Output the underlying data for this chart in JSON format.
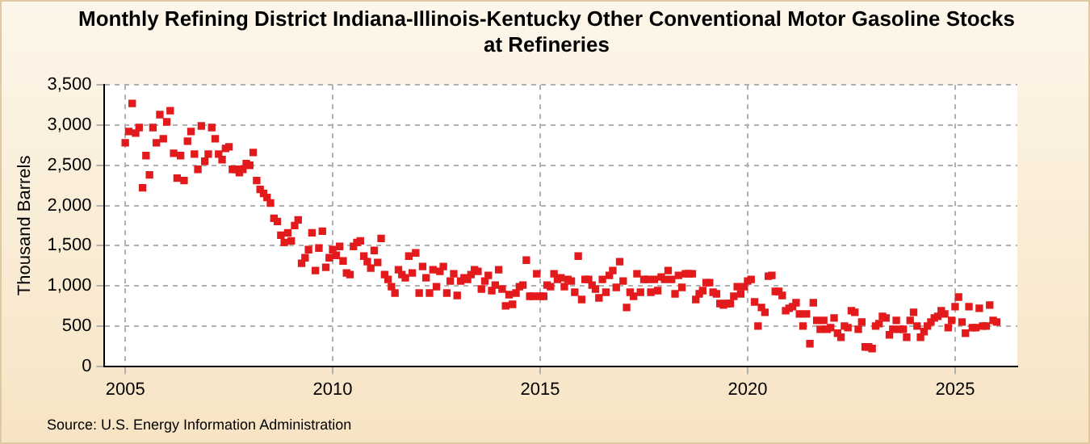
{
  "chart_data": {
    "type": "scatter",
    "title": "Monthly Refining District Indiana-Illinois-Kentucky Other Conventional Motor Gasoline Stocks at Refineries",
    "ylabel": "Thousand Barrels",
    "annotations": [
      "Source: U.S. Energy Information Administration"
    ],
    "x": [
      "2005-01",
      "2005-02",
      "2005-03",
      "2005-04",
      "2005-05",
      "2005-06",
      "2005-07",
      "2005-08",
      "2005-09",
      "2005-10",
      "2005-11",
      "2005-12",
      "2006-01",
      "2006-02",
      "2006-03",
      "2006-04",
      "2006-05",
      "2006-06",
      "2006-07",
      "2006-08",
      "2006-09",
      "2006-10",
      "2006-11",
      "2006-12",
      "2007-01",
      "2007-02",
      "2007-03",
      "2007-04",
      "2007-05",
      "2007-06",
      "2007-07",
      "2007-08",
      "2007-09",
      "2007-10",
      "2007-11",
      "2007-12",
      "2008-01",
      "2008-02",
      "2008-03",
      "2008-04",
      "2008-05",
      "2008-06",
      "2008-07",
      "2008-08",
      "2008-09",
      "2008-10",
      "2008-11",
      "2008-12",
      "2009-01",
      "2009-02",
      "2009-03",
      "2009-04",
      "2009-05",
      "2009-06",
      "2009-07",
      "2009-08",
      "2009-09",
      "2009-10",
      "2009-11",
      "2009-12",
      "2010-01",
      "2010-02",
      "2010-03",
      "2010-04",
      "2010-05",
      "2010-06",
      "2010-07",
      "2010-08",
      "2010-09",
      "2010-10",
      "2010-11",
      "2010-12",
      "2011-01",
      "2011-02",
      "2011-03",
      "2011-04",
      "2011-05",
      "2011-06",
      "2011-07",
      "2011-08",
      "2011-09",
      "2011-10",
      "2011-11",
      "2011-12",
      "2012-01",
      "2012-02",
      "2012-03",
      "2012-04",
      "2012-05",
      "2012-06",
      "2012-07",
      "2012-08",
      "2012-09",
      "2012-10",
      "2012-11",
      "2012-12",
      "2013-01",
      "2013-02",
      "2013-03",
      "2013-04",
      "2013-05",
      "2013-06",
      "2013-07",
      "2013-08",
      "2013-09",
      "2013-10",
      "2013-11",
      "2013-12",
      "2014-01",
      "2014-02",
      "2014-03",
      "2014-04",
      "2014-05",
      "2014-06",
      "2014-07",
      "2014-08",
      "2014-09",
      "2014-10",
      "2014-11",
      "2014-12",
      "2015-01",
      "2015-02",
      "2015-03",
      "2015-04",
      "2015-05",
      "2015-06",
      "2015-07",
      "2015-08",
      "2015-09",
      "2015-10",
      "2015-11",
      "2015-12",
      "2016-01",
      "2016-02",
      "2016-03",
      "2016-04",
      "2016-05",
      "2016-06",
      "2016-07",
      "2016-08",
      "2016-09",
      "2016-10",
      "2016-11",
      "2016-12",
      "2017-01",
      "2017-02",
      "2017-03",
      "2017-04",
      "2017-05",
      "2017-06",
      "2017-07",
      "2017-08",
      "2017-09",
      "2017-10",
      "2017-11",
      "2017-12",
      "2018-01",
      "2018-02",
      "2018-03",
      "2018-04",
      "2018-05",
      "2018-06",
      "2018-07",
      "2018-08",
      "2018-09",
      "2018-10",
      "2018-11",
      "2018-12",
      "2019-01",
      "2019-02",
      "2019-03",
      "2019-04",
      "2019-05",
      "2019-06",
      "2019-07",
      "2019-08",
      "2019-09",
      "2019-10",
      "2019-11",
      "2019-12",
      "2020-01",
      "2020-02",
      "2020-03",
      "2020-04",
      "2020-05",
      "2020-06",
      "2020-07",
      "2020-08",
      "2020-09",
      "2020-10",
      "2020-11",
      "2020-12",
      "2021-01",
      "2021-02",
      "2021-03",
      "2021-04",
      "2021-05",
      "2021-06",
      "2021-07",
      "2021-08",
      "2021-09",
      "2021-10",
      "2021-11",
      "2021-12",
      "2022-01",
      "2022-02",
      "2022-03",
      "2022-04",
      "2022-05",
      "2022-06",
      "2022-07",
      "2022-08",
      "2022-09",
      "2022-10",
      "2022-11",
      "2022-12",
      "2023-01",
      "2023-02",
      "2023-03",
      "2023-04",
      "2023-05",
      "2023-06",
      "2023-07",
      "2023-08",
      "2023-09",
      "2023-10",
      "2023-11",
      "2023-12",
      "2024-01",
      "2024-02",
      "2024-03",
      "2024-04",
      "2024-05",
      "2024-06",
      "2024-07",
      "2024-08",
      "2024-09",
      "2024-10",
      "2024-11",
      "2024-12",
      "2025-01",
      "2025-02",
      "2025-03",
      "2025-04",
      "2025-05",
      "2025-06",
      "2025-07",
      "2025-08",
      "2025-09",
      "2025-10",
      "2025-11",
      "2025-12",
      "2026-01"
    ],
    "series": [
      {
        "color": "#e31a1c",
        "values": [
          2780,
          2920,
          3270,
          2900,
          2970,
          2220,
          2620,
          2380,
          2970,
          2780,
          3130,
          2830,
          3040,
          3180,
          2650,
          2340,
          2620,
          2310,
          2800,
          2920,
          2640,
          2450,
          2990,
          2550,
          2640,
          2970,
          2830,
          2640,
          2570,
          2710,
          2730,
          2450,
          2450,
          2410,
          2450,
          2520,
          2500,
          2660,
          2310,
          2200,
          2150,
          2100,
          2030,
          1840,
          1800,
          1630,
          1540,
          1660,
          1560,
          1750,
          1820,
          1280,
          1350,
          1450,
          1660,
          1190,
          1470,
          1680,
          1230,
          1350,
          1450,
          1380,
          1490,
          1310,
          1160,
          1140,
          1490,
          1540,
          1560,
          1370,
          1300,
          1220,
          1440,
          1290,
          1590,
          1140,
          1080,
          990,
          910,
          1200,
          1140,
          1100,
          1370,
          1160,
          1410,
          910,
          1240,
          1100,
          910,
          1200,
          990,
          1180,
          1240,
          910,
          1060,
          1150,
          880,
          1060,
          1100,
          1080,
          1140,
          1200,
          1180,
          960,
          1060,
          1130,
          940,
          1010,
          1200,
          960,
          750,
          890,
          770,
          910,
          990,
          1010,
          1320,
          870,
          870,
          1150,
          870,
          870,
          1010,
          990,
          1150,
          1080,
          1100,
          990,
          1080,
          1060,
          920,
          1370,
          830,
          1080,
          1080,
          1010,
          960,
          850,
          1080,
          920,
          1130,
          1190,
          980,
          1300,
          1060,
          730,
          920,
          870,
          1150,
          920,
          1080,
          1080,
          920,
          1080,
          940,
          1110,
          1080,
          1190,
          1080,
          900,
          1130,
          980,
          1150,
          1150,
          1150,
          830,
          900,
          940,
          1040,
          1040,
          920,
          900,
          780,
          760,
          780,
          780,
          870,
          990,
          900,
          990,
          1060,
          1080,
          800,
          500,
          730,
          670,
          1120,
          1130,
          930,
          930,
          880,
          690,
          720,
          740,
          790,
          650,
          500,
          650,
          280,
          790,
          570,
          460,
          570,
          460,
          480,
          600,
          410,
          360,
          500,
          480,
          690,
          670,
          460,
          550,
          240,
          240,
          220,
          500,
          530,
          620,
          600,
          390,
          460,
          570,
          460,
          460,
          360,
          570,
          670,
          500,
          360,
          430,
          500,
          550,
          600,
          620,
          690,
          650,
          480,
          570,
          740,
          860,
          550,
          410,
          740,
          480,
          480,
          720,
          500,
          500,
          760,
          570,
          550
        ]
      }
    ],
    "xlim": [
      "2004-07",
      "2026-07"
    ],
    "xticks": [
      "2005",
      "2010",
      "2015",
      "2020",
      "2025"
    ],
    "ylim": [
      0,
      3500
    ],
    "yticks": [
      0,
      500,
      {
        "value": 1000,
        "label": "1,000"
      },
      {
        "value": 1500,
        "label": "1,500"
      },
      {
        "value": 2000,
        "label": "2,000"
      },
      {
        "value": 2500,
        "label": "2,500"
      },
      {
        "value": 3000,
        "label": "3,000"
      },
      {
        "value": 3500,
        "label": "3,500"
      }
    ],
    "grid": true,
    "legend": false,
    "marker": "square"
  }
}
